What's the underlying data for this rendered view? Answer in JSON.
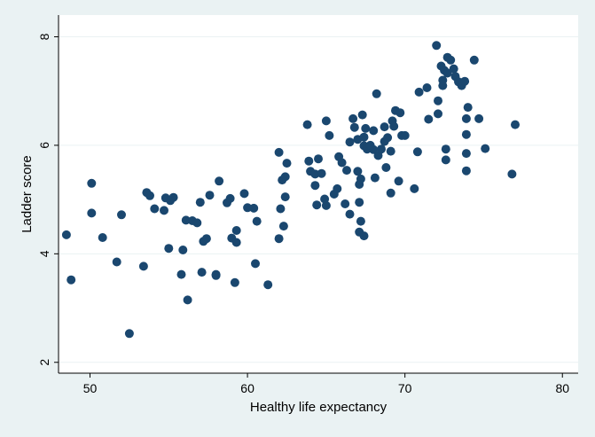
{
  "chart_data": {
    "type": "scatter",
    "title": "",
    "xlabel": "Healthy life expectancy",
    "ylabel": "Ladder score",
    "xlim": [
      48,
      81
    ],
    "ylim": [
      1.8,
      8.4
    ],
    "x_ticks": [
      50,
      60,
      70,
      80
    ],
    "y_ticks": [
      2,
      4,
      6,
      8
    ],
    "grid": "horizontal",
    "legend": "none",
    "colors": {
      "background": "#eaf2f3",
      "plot_area": "#ffffff",
      "marker": "#1a476f",
      "grid": "#eaf2f3"
    },
    "points": [
      [
        48.5,
        4.35
      ],
      [
        48.8,
        3.52
      ],
      [
        50.1,
        4.75
      ],
      [
        50.1,
        5.3
      ],
      [
        50.8,
        4.3
      ],
      [
        51.7,
        3.85
      ],
      [
        52.0,
        4.72
      ],
      [
        52.5,
        2.53
      ],
      [
        53.4,
        3.77
      ],
      [
        53.6,
        5.13
      ],
      [
        53.8,
        5.07
      ],
      [
        54.1,
        4.83
      ],
      [
        54.7,
        4.8
      ],
      [
        54.8,
        5.03
      ],
      [
        55.0,
        4.1
      ],
      [
        55.1,
        4.98
      ],
      [
        55.3,
        5.04
      ],
      [
        55.8,
        3.62
      ],
      [
        55.9,
        4.07
      ],
      [
        56.1,
        4.62
      ],
      [
        56.2,
        3.15
      ],
      [
        56.5,
        4.61
      ],
      [
        56.8,
        4.57
      ],
      [
        57.0,
        4.95
      ],
      [
        57.1,
        3.66
      ],
      [
        57.2,
        4.23
      ],
      [
        57.4,
        4.28
      ],
      [
        57.6,
        5.08
      ],
      [
        58.0,
        3.6
      ],
      [
        58.0,
        3.62
      ],
      [
        58.2,
        5.34
      ],
      [
        58.7,
        4.94
      ],
      [
        58.9,
        5.02
      ],
      [
        59.0,
        4.29
      ],
      [
        59.2,
        3.47
      ],
      [
        59.3,
        4.21
      ],
      [
        59.3,
        4.43
      ],
      [
        59.8,
        5.11
      ],
      [
        60.0,
        4.85
      ],
      [
        60.4,
        4.84
      ],
      [
        60.5,
        3.82
      ],
      [
        60.6,
        4.6
      ],
      [
        61.3,
        3.43
      ],
      [
        62.0,
        5.87
      ],
      [
        62.0,
        4.28
      ],
      [
        62.1,
        4.83
      ],
      [
        62.2,
        5.36
      ],
      [
        62.3,
        4.51
      ],
      [
        62.4,
        5.42
      ],
      [
        62.4,
        5.05
      ],
      [
        62.5,
        5.67
      ],
      [
        63.8,
        6.38
      ],
      [
        63.9,
        5.71
      ],
      [
        64.0,
        5.52
      ],
      [
        64.3,
        5.26
      ],
      [
        64.3,
        5.47
      ],
      [
        64.4,
        4.9
      ],
      [
        64.5,
        5.75
      ],
      [
        64.7,
        5.48
      ],
      [
        64.9,
        5.01
      ],
      [
        65.0,
        6.45
      ],
      [
        65.0,
        4.89
      ],
      [
        65.2,
        6.18
      ],
      [
        65.5,
        5.1
      ],
      [
        65.7,
        5.2
      ],
      [
        65.8,
        5.79
      ],
      [
        66.0,
        5.68
      ],
      [
        66.2,
        4.92
      ],
      [
        66.3,
        5.54
      ],
      [
        66.5,
        6.06
      ],
      [
        66.5,
        4.73
      ],
      [
        66.7,
        6.49
      ],
      [
        66.8,
        6.33
      ],
      [
        67.0,
        6.11
      ],
      [
        67.0,
        5.52
      ],
      [
        67.1,
        5.28
      ],
      [
        67.1,
        4.95
      ],
      [
        67.1,
        4.4
      ],
      [
        67.2,
        5.38
      ],
      [
        67.2,
        4.6
      ],
      [
        67.3,
        6.56
      ],
      [
        67.4,
        6.15
      ],
      [
        67.4,
        5.99
      ],
      [
        67.4,
        4.33
      ],
      [
        67.5,
        6.31
      ],
      [
        67.6,
        5.93
      ],
      [
        67.8,
        6.0
      ],
      [
        68.0,
        6.27
      ],
      [
        68.0,
        5.92
      ],
      [
        68.1,
        5.4
      ],
      [
        68.2,
        6.95
      ],
      [
        68.3,
        5.81
      ],
      [
        68.5,
        5.93
      ],
      [
        68.7,
        6.07
      ],
      [
        68.7,
        6.34
      ],
      [
        68.8,
        5.59
      ],
      [
        68.9,
        6.14
      ],
      [
        69.1,
        5.89
      ],
      [
        69.1,
        5.12
      ],
      [
        69.2,
        6.45
      ],
      [
        69.3,
        6.35
      ],
      [
        69.4,
        6.64
      ],
      [
        69.6,
        5.34
      ],
      [
        69.7,
        6.6
      ],
      [
        69.8,
        6.18
      ],
      [
        70.0,
        6.18
      ],
      [
        70.6,
        5.2
      ],
      [
        70.8,
        5.88
      ],
      [
        70.9,
        6.98
      ],
      [
        71.4,
        7.06
      ],
      [
        71.5,
        6.48
      ],
      [
        72.0,
        7.84
      ],
      [
        72.1,
        6.82
      ],
      [
        72.3,
        7.46
      ],
      [
        72.4,
        7.1
      ],
      [
        72.4,
        7.2
      ],
      [
        72.5,
        7.38
      ],
      [
        72.6,
        5.73
      ],
      [
        72.6,
        5.93
      ],
      [
        72.7,
        7.62
      ],
      [
        72.7,
        7.33
      ],
      [
        72.9,
        7.57
      ],
      [
        73.1,
        7.41
      ],
      [
        73.2,
        7.27
      ],
      [
        73.4,
        7.17
      ],
      [
        73.6,
        7.1
      ],
      [
        73.8,
        7.18
      ],
      [
        73.9,
        6.49
      ],
      [
        73.9,
        6.2
      ],
      [
        73.9,
        5.85
      ],
      [
        73.9,
        5.53
      ],
      [
        74.0,
        6.7
      ],
      [
        74.4,
        7.57
      ],
      [
        74.7,
        6.49
      ],
      [
        75.1,
        5.94
      ],
      [
        76.8,
        5.47
      ],
      [
        77.0,
        6.38
      ],
      [
        72.1,
        6.58
      ]
    ]
  }
}
